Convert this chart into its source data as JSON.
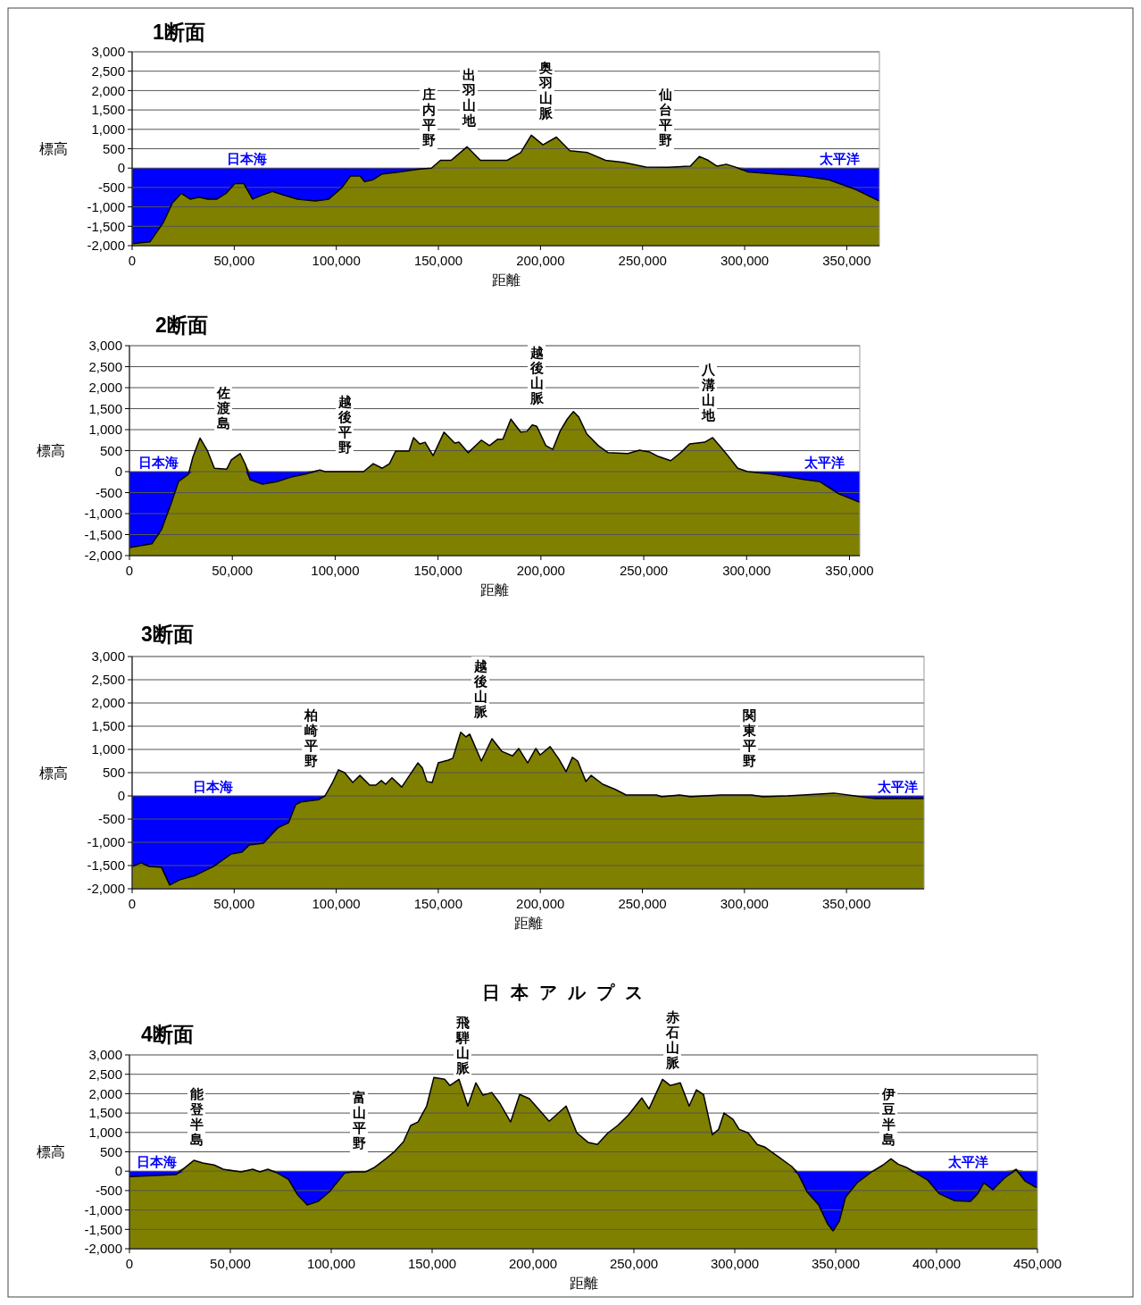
{
  "chart_data": [
    {
      "type": "area",
      "title": "1断面",
      "xlabel": "距離",
      "ylabel": "標高",
      "x": [
        0,
        8750,
        15300,
        19700,
        24000,
        28400,
        32800,
        37000,
        41500,
        46000,
        50300,
        54700,
        59000,
        63500,
        68700,
        74400,
        81000,
        89700,
        96300,
        102800,
        107000,
        111600,
        113800,
        118000,
        122500,
        131000,
        140000,
        146600,
        151000,
        156200,
        164000,
        170600,
        183700,
        190300,
        195500,
        201200,
        207800,
        214400,
        223100,
        231900,
        240600,
        251600,
        262500,
        273400,
        277800,
        282200,
        286500,
        291000,
        295300,
        301800,
        315000,
        328000,
        341200,
        354300,
        366000
      ],
      "series": [
        {
          "color": "#0000ff",
          "values": [
            -1950,
            -1900,
            -1400,
            -900,
            -650,
            -800,
            -750,
            -800,
            -800,
            -650,
            -400,
            -400,
            -800,
            -700,
            -600,
            -700,
            -800,
            -850,
            -800,
            -500,
            -200,
            -200,
            -350,
            -300,
            -150,
            -100,
            -30,
            0,
            0,
            0,
            0,
            0,
            0,
            0,
            0,
            0,
            0,
            0,
            0,
            0,
            0,
            0,
            0,
            0,
            0,
            0,
            0,
            0,
            0,
            -100,
            -150,
            -200,
            -300,
            -550,
            -850
          ]
        },
        {
          "color": "#808000",
          "values": [
            0,
            0,
            0,
            0,
            0,
            0,
            0,
            0,
            0,
            0,
            0,
            0,
            0,
            0,
            0,
            0,
            0,
            0,
            0,
            0,
            0,
            0,
            0,
            0,
            0,
            0,
            0,
            0,
            200,
            200,
            550,
            200,
            200,
            400,
            850,
            600,
            800,
            450,
            400,
            200,
            150,
            30,
            20,
            50,
            300,
            200,
            50,
            100,
            30,
            0,
            0,
            0,
            0,
            0,
            0
          ]
        },
        {
          "type": "line",
          "color": "#000000",
          "values": [
            -1950,
            -1900,
            -1400,
            -900,
            -650,
            -800,
            -750,
            -800,
            -800,
            -650,
            -400,
            -400,
            -800,
            -700,
            -600,
            -700,
            -800,
            -850,
            -800,
            -500,
            -200,
            -200,
            -350,
            -300,
            -150,
            -100,
            -30,
            0,
            200,
            200,
            550,
            200,
            200,
            400,
            850,
            600,
            800,
            450,
            400,
            200,
            150,
            30,
            20,
            50,
            300,
            200,
            50,
            100,
            30,
            -100,
            -150,
            -200,
            -300,
            -550,
            -850
          ]
        }
      ],
      "xlim": [
        0,
        366000
      ],
      "ylim": [
        -2000,
        3000
      ],
      "xticks": [
        {
          "value": 0,
          "label": "0"
        },
        {
          "value": 50000,
          "label": "50,000"
        },
        {
          "value": 100000,
          "label": "100,000"
        },
        {
          "value": 150000,
          "label": "150,000"
        },
        {
          "value": 200000,
          "label": "200,000"
        },
        {
          "value": 250000,
          "label": "250,000"
        },
        {
          "value": 300000,
          "label": "300,000"
        },
        {
          "value": 350000,
          "label": "350,000"
        }
      ],
      "yticks": [
        {
          "value": -2000,
          "label": "-2,000"
        },
        {
          "value": -1500,
          "label": "-1,500"
        },
        {
          "value": -1000,
          "label": "-1,000"
        },
        {
          "value": -500,
          "label": "-500"
        },
        {
          "value": 0,
          "label": "0"
        },
        {
          "value": 500,
          "label": "500"
        },
        {
          "value": 1000,
          "label": "1,000"
        },
        {
          "value": 1500,
          "label": "1,500"
        },
        {
          "value": 2000,
          "label": "2,000"
        },
        {
          "value": 2500,
          "label": "2,500"
        },
        {
          "value": 3000,
          "label": "3,000"
        }
      ],
      "grid": "y",
      "bands": [
        {
          "axis": "y",
          "from": -2000,
          "to": 0,
          "color": "#808000"
        }
      ],
      "annotations": [
        {
          "text": "日本海",
          "x": 56000,
          "y": 0
        },
        {
          "text": "太平洋",
          "x": 346500,
          "y": 0
        },
        "庄内平野",
        "出羽山地",
        "奥羽山脈",
        "仙台平野"
      ]
    },
    {
      "type": "area",
      "title": "2断面",
      "xlabel": "距離",
      "ylabel": "標高",
      "x": [
        0,
        10900,
        15600,
        20400,
        23900,
        28700,
        30800,
        34300,
        37800,
        41300,
        47300,
        49500,
        53800,
        56400,
        58600,
        64700,
        71600,
        78600,
        85500,
        92500,
        95100,
        113800,
        118500,
        122900,
        126400,
        129400,
        135900,
        138100,
        141100,
        143700,
        147600,
        152900,
        158100,
        160200,
        164600,
        171100,
        175000,
        178900,
        181500,
        185400,
        190200,
        193200,
        195800,
        198000,
        202400,
        205800,
        209300,
        212800,
        215800,
        218400,
        222300,
        227900,
        232700,
        242300,
        247900,
        252700,
        257100,
        263100,
        267900,
        272300,
        279600,
        283500,
        287500,
        290900,
        295700,
        300500,
        312200,
        328300,
        335700,
        344800,
        355000
      ],
      "series": [
        {
          "color": "#0000ff",
          "values": [
            -1810,
            -1720,
            -1380,
            -740,
            -230,
            -60,
            0,
            0,
            0,
            0,
            0,
            0,
            0,
            0,
            -190,
            -300,
            -240,
            -130,
            -60,
            0,
            0,
            0,
            0,
            0,
            0,
            0,
            0,
            0,
            0,
            0,
            0,
            0,
            0,
            0,
            0,
            0,
            0,
            0,
            0,
            0,
            0,
            0,
            0,
            0,
            0,
            0,
            0,
            0,
            0,
            0,
            0,
            0,
            0,
            0,
            0,
            0,
            0,
            0,
            0,
            0,
            0,
            0,
            0,
            0,
            0,
            0,
            -60,
            -190,
            -240,
            -530,
            -730
          ]
        },
        {
          "color": "#808000",
          "values": [
            0,
            0,
            0,
            0,
            0,
            0,
            340,
            800,
            510,
            80,
            60,
            280,
            430,
            170,
            0,
            0,
            0,
            0,
            0,
            40,
            0,
            0,
            190,
            80,
            190,
            490,
            490,
            810,
            660,
            700,
            380,
            940,
            680,
            700,
            450,
            750,
            620,
            770,
            770,
            1250,
            940,
            960,
            1110,
            1080,
            620,
            530,
            960,
            1250,
            1430,
            1300,
            900,
            620,
            450,
            430,
            510,
            470,
            360,
            260,
            450,
            660,
            700,
            810,
            580,
            380,
            80,
            0,
            0,
            0,
            0,
            0,
            0
          ]
        },
        {
          "type": "line",
          "color": "#000000",
          "values": [
            -1810,
            -1720,
            -1380,
            -740,
            -230,
            -60,
            340,
            800,
            510,
            80,
            60,
            280,
            430,
            170,
            -190,
            -300,
            -240,
            -130,
            -60,
            40,
            0,
            0,
            190,
            80,
            190,
            490,
            490,
            810,
            660,
            700,
            380,
            940,
            680,
            700,
            450,
            750,
            620,
            770,
            770,
            1250,
            940,
            960,
            1110,
            1080,
            620,
            530,
            960,
            1250,
            1430,
            1300,
            900,
            620,
            450,
            430,
            510,
            470,
            360,
            260,
            450,
            660,
            700,
            810,
            580,
            380,
            80,
            0,
            -60,
            -190,
            -240,
            -530,
            -730
          ]
        }
      ],
      "xlim": [
        0,
        355000
      ],
      "ylim": [
        -2000,
        3000
      ],
      "xticks": [
        {
          "value": 0,
          "label": "0"
        },
        {
          "value": 50000,
          "label": "50,000"
        },
        {
          "value": 100000,
          "label": "100,000"
        },
        {
          "value": 150000,
          "label": "150,000"
        },
        {
          "value": 200000,
          "label": "200,000"
        },
        {
          "value": 250000,
          "label": "250,000"
        },
        {
          "value": 300000,
          "label": "300,000"
        },
        {
          "value": 350000,
          "label": "350,000"
        }
      ],
      "yticks": [
        {
          "value": -2000,
          "label": "-2,000"
        },
        {
          "value": -1500,
          "label": "-1,500"
        },
        {
          "value": -1000,
          "label": "-1,000"
        },
        {
          "value": -500,
          "label": "-500"
        },
        {
          "value": 0,
          "label": "0"
        },
        {
          "value": 500,
          "label": "500"
        },
        {
          "value": 1000,
          "label": "1,000"
        },
        {
          "value": 1500,
          "label": "1,500"
        },
        {
          "value": 2000,
          "label": "2,000"
        },
        {
          "value": 2500,
          "label": "2,500"
        },
        {
          "value": 3000,
          "label": "3,000"
        }
      ],
      "grid": "y",
      "bands": [
        {
          "axis": "y",
          "from": -2000,
          "to": 0,
          "color": "#808000"
        }
      ],
      "annotations": [
        {
          "text": "日本海",
          "x": 14300,
          "y": 0
        },
        {
          "text": "太平洋",
          "x": 337800,
          "y": 0
        },
        "佐渡島",
        "越後平野",
        "越後山脈",
        "八溝山地"
      ]
    },
    {
      "type": "area",
      "title": "3断面",
      "xlabel": "距離",
      "ylabel": "標高",
      "x": [
        0,
        4400,
        8300,
        14400,
        18400,
        23200,
        31100,
        39800,
        48600,
        53800,
        57300,
        64300,
        71300,
        76600,
        80100,
        82700,
        91400,
        94500,
        98000,
        101100,
        104100,
        108100,
        111600,
        116400,
        119400,
        122100,
        124200,
        127300,
        132100,
        135600,
        140000,
        142200,
        144400,
        147000,
        150000,
        154900,
        157100,
        161000,
        163600,
        165400,
        171100,
        176300,
        181100,
        186400,
        189400,
        193800,
        197800,
        199900,
        204800,
        209100,
        212600,
        215700,
        218300,
        222300,
        224900,
        230600,
        236700,
        242000,
        256900,
        259500,
        268200,
        273400,
        288300,
        303600,
        308900,
        321100,
        343900,
        354000,
        364000,
        388000
      ],
      "series": [
        {
          "color": "#0000ff",
          "values": [
            -1520,
            -1440,
            -1520,
            -1540,
            -1920,
            -1810,
            -1710,
            -1520,
            -1250,
            -1210,
            -1060,
            -1020,
            -690,
            -580,
            -190,
            -130,
            -80,
            0,
            0,
            0,
            0,
            0,
            0,
            0,
            0,
            0,
            0,
            0,
            0,
            0,
            0,
            0,
            0,
            0,
            0,
            0,
            0,
            0,
            0,
            0,
            0,
            0,
            0,
            0,
            0,
            0,
            0,
            0,
            0,
            0,
            0,
            0,
            0,
            0,
            0,
            0,
            0,
            0,
            0,
            -20,
            0,
            -20,
            0,
            0,
            -20,
            0,
            0,
            0,
            -60,
            -60
          ]
        },
        {
          "color": "#808000",
          "values": [
            0,
            0,
            0,
            0,
            0,
            0,
            0,
            0,
            0,
            0,
            0,
            0,
            0,
            0,
            0,
            0,
            0,
            0,
            270,
            560,
            500,
            290,
            440,
            230,
            230,
            330,
            250,
            390,
            190,
            420,
            710,
            600,
            310,
            290,
            710,
            770,
            810,
            1370,
            1270,
            1330,
            750,
            1230,
            960,
            860,
            1020,
            710,
            1020,
            880,
            1060,
            790,
            520,
            830,
            750,
            310,
            440,
            250,
            140,
            20,
            20,
            0,
            20,
            0,
            20,
            20,
            0,
            0,
            60,
            0,
            0,
            0
          ]
        },
        {
          "type": "line",
          "color": "#000000",
          "values": [
            -1520,
            -1440,
            -1520,
            -1540,
            -1920,
            -1810,
            -1710,
            -1520,
            -1250,
            -1210,
            -1060,
            -1020,
            -690,
            -580,
            -190,
            -130,
            -80,
            0,
            270,
            560,
            500,
            290,
            440,
            230,
            230,
            330,
            250,
            390,
            190,
            420,
            710,
            600,
            310,
            290,
            710,
            770,
            810,
            1370,
            1270,
            1330,
            750,
            1230,
            960,
            860,
            1020,
            710,
            1020,
            880,
            1060,
            790,
            520,
            830,
            750,
            310,
            440,
            250,
            140,
            20,
            20,
            -20,
            20,
            -20,
            20,
            20,
            -20,
            0,
            60,
            0,
            -60,
            -60
          ]
        }
      ],
      "xlim": [
        0,
        388000
      ],
      "ylim": [
        -2000,
        3000
      ],
      "xticks": [
        {
          "value": 0,
          "label": "0"
        },
        {
          "value": 50000,
          "label": "50,000"
        },
        {
          "value": 100000,
          "label": "100,000"
        },
        {
          "value": 150000,
          "label": "150,000"
        },
        {
          "value": 200000,
          "label": "200,000"
        },
        {
          "value": 250000,
          "label": "250,000"
        },
        {
          "value": 300000,
          "label": "300,000"
        },
        {
          "value": 350000,
          "label": "350,000"
        }
      ],
      "yticks": [
        {
          "value": -2000,
          "label": "-2,000"
        },
        {
          "value": -1500,
          "label": "-1,500"
        },
        {
          "value": -1000,
          "label": "-1,000"
        },
        {
          "value": -500,
          "label": "-500"
        },
        {
          "value": 0,
          "label": "0"
        },
        {
          "value": 500,
          "label": "500"
        },
        {
          "value": 1000,
          "label": "1,000"
        },
        {
          "value": 1500,
          "label": "1,500"
        },
        {
          "value": 2000,
          "label": "2,000"
        },
        {
          "value": 2500,
          "label": "2,500"
        },
        {
          "value": 3000,
          "label": "3,000"
        }
      ],
      "grid": "y",
      "bands": [
        {
          "axis": "y",
          "from": -2000,
          "to": 0,
          "color": "#808000"
        }
      ],
      "annotations": [
        {
          "text": "日本海",
          "x": 39800,
          "y": 0
        },
        {
          "text": "太平洋",
          "x": 375000,
          "y": 0
        },
        "柏崎平野",
        "越後山脈",
        "関東平野"
      ]
    },
    {
      "type": "area",
      "title": "4断面",
      "xlabel": "距離",
      "ylabel": "標高",
      "x": [
        0,
        23000,
        27400,
        31900,
        36300,
        42000,
        46500,
        55300,
        61100,
        64600,
        68600,
        73500,
        78800,
        83200,
        88100,
        93400,
        99100,
        106600,
        110600,
        116800,
        121200,
        127000,
        131400,
        135800,
        139400,
        143000,
        147300,
        150900,
        156200,
        158800,
        163300,
        167700,
        171700,
        175200,
        179600,
        183600,
        188900,
        193400,
        198200,
        204400,
        208000,
        211500,
        216400,
        221700,
        227400,
        231900,
        237200,
        242000,
        247300,
        253900,
        257500,
        264200,
        268100,
        273000,
        277400,
        281000,
        284500,
        288900,
        292000,
        294700,
        299100,
        302200,
        306600,
        311100,
        315000,
        321200,
        328300,
        331400,
        335800,
        341600,
        346000,
        348700,
        351800,
        354900,
        360600,
        367700,
        373500,
        377400,
        381000,
        385400,
        389800,
        395600,
        401300,
        408800,
        416800,
        420400,
        423500,
        427900,
        433600,
        439400,
        443800,
        449100,
        450000
      ],
      "series": [
        {
          "color": "#0000ff",
          "values": [
            -140,
            -90,
            0,
            0,
            0,
            0,
            0,
            -20,
            0,
            -20,
            0,
            -50,
            -210,
            -600,
            -870,
            -780,
            -530,
            -50,
            -20,
            -20,
            0,
            0,
            0,
            0,
            0,
            0,
            0,
            0,
            0,
            0,
            0,
            0,
            0,
            0,
            0,
            0,
            0,
            0,
            0,
            0,
            0,
            0,
            0,
            0,
            0,
            0,
            0,
            0,
            0,
            0,
            0,
            0,
            0,
            0,
            0,
            0,
            0,
            0,
            0,
            0,
            0,
            0,
            0,
            0,
            0,
            0,
            0,
            -70,
            -530,
            -870,
            -1360,
            -1540,
            -1290,
            -670,
            -300,
            -20,
            0,
            0,
            0,
            0,
            -50,
            -230,
            -580,
            -760,
            -780,
            -580,
            -300,
            -480,
            -180,
            0,
            -250,
            -410,
            -410
          ]
        },
        {
          "color": "#808000",
          "values": [
            0,
            0,
            90,
            280,
            210,
            160,
            50,
            0,
            50,
            0,
            50,
            0,
            0,
            0,
            0,
            0,
            0,
            0,
            0,
            0,
            90,
            320,
            510,
            760,
            1180,
            1270,
            1680,
            2420,
            2370,
            2210,
            2370,
            1680,
            2280,
            1960,
            2030,
            1750,
            1270,
            1980,
            1870,
            1500,
            1290,
            1450,
            1680,
            990,
            740,
            690,
            990,
            1180,
            1450,
            1890,
            1610,
            2370,
            2210,
            2280,
            1680,
            2100,
            1980,
            940,
            1080,
            1500,
            1340,
            1080,
            990,
            690,
            620,
            390,
            120,
            0,
            0,
            0,
            0,
            0,
            0,
            0,
            0,
            0,
            160,
            320,
            180,
            90,
            0,
            0,
            0,
            0,
            0,
            0,
            0,
            0,
            0,
            50,
            0,
            0,
            0
          ]
        },
        {
          "type": "line",
          "color": "#000000",
          "values": [
            -140,
            -90,
            90,
            280,
            210,
            160,
            50,
            -20,
            50,
            -20,
            50,
            -50,
            -210,
            -600,
            -870,
            -780,
            -530,
            -50,
            -20,
            -20,
            90,
            320,
            510,
            760,
            1180,
            1270,
            1680,
            2420,
            2370,
            2210,
            2370,
            1680,
            2280,
            1960,
            2030,
            1750,
            1270,
            1980,
            1870,
            1500,
            1290,
            1450,
            1680,
            990,
            740,
            690,
            990,
            1180,
            1450,
            1890,
            1610,
            2370,
            2210,
            2280,
            1680,
            2100,
            1980,
            940,
            1080,
            1500,
            1340,
            1080,
            990,
            690,
            620,
            390,
            120,
            -70,
            -530,
            -870,
            -1360,
            -1540,
            -1290,
            -670,
            -300,
            -20,
            160,
            320,
            180,
            90,
            -50,
            -230,
            -580,
            -760,
            -780,
            -580,
            -300,
            -480,
            -180,
            50,
            -250,
            -410,
            -410
          ]
        }
      ],
      "xlim": [
        0,
        450000
      ],
      "ylim": [
        -2000,
        3000
      ],
      "xticks": [
        {
          "value": 0,
          "label": "0"
        },
        {
          "value": 50000,
          "label": "50,000"
        },
        {
          "value": 100000,
          "label": "100,000"
        },
        {
          "value": 150000,
          "label": "150,000"
        },
        {
          "value": 200000,
          "label": "200,000"
        },
        {
          "value": 250000,
          "label": "250,000"
        },
        {
          "value": 300000,
          "label": "300,000"
        },
        {
          "value": 350000,
          "label": "350,000"
        },
        {
          "value": 400000,
          "label": "400,000"
        },
        {
          "value": 450000,
          "label": "450,000"
        }
      ],
      "yticks": [
        {
          "value": -2000,
          "label": "-2,000"
        },
        {
          "value": -1500,
          "label": "-1,500"
        },
        {
          "value": -1000,
          "label": "-1,000"
        },
        {
          "value": -500,
          "label": "-500"
        },
        {
          "value": 0,
          "label": "0"
        },
        {
          "value": 500,
          "label": "500"
        },
        {
          "value": 1000,
          "label": "1,000"
        },
        {
          "value": 1500,
          "label": "1,500"
        },
        {
          "value": 2000,
          "label": "2,000"
        },
        {
          "value": 2500,
          "label": "2,500"
        },
        {
          "value": 3000,
          "label": "3,000"
        }
      ],
      "grid": "y",
      "bands": [
        {
          "axis": "y",
          "from": -2000,
          "to": 0,
          "color": "#808000"
        }
      ],
      "annotations": [
        {
          "text": "日本海",
          "x": 13700,
          "y": 0
        },
        {
          "text": "太平洋",
          "x": 415900,
          "y": 0
        },
        "日本アルプス",
        "能登半島",
        "富山平野",
        "飛騨山脈",
        "赤石山脈",
        "伊豆半島"
      ]
    }
  ]
}
